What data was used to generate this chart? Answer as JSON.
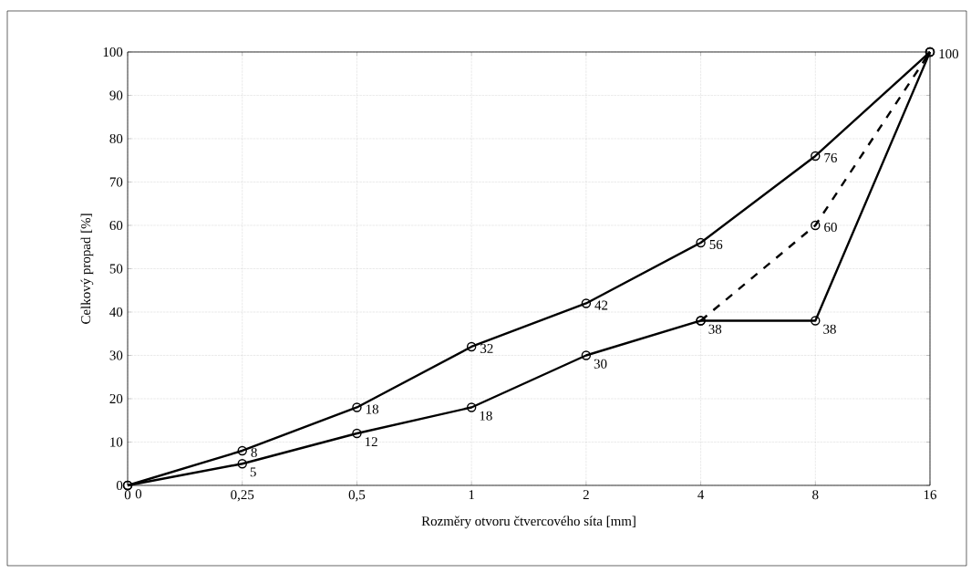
{
  "chart_data": {
    "type": "line",
    "xlabel": "Rozměry otvoru čtvercového síta [mm]",
    "ylabel": "Celkový propad [%]",
    "categories": [
      "0",
      "0,25",
      "0,5",
      "1",
      "2",
      "4",
      "8",
      "16"
    ],
    "series": [
      {
        "color": "#000000",
        "values": [
          0,
          8,
          18,
          32,
          42,
          56,
          76,
          100
        ],
        "value_labels": [
          "0",
          "8",
          "18",
          "32",
          "42",
          "56",
          "76",
          "100"
        ]
      },
      {
        "color": "#000000",
        "values": [
          0,
          5,
          12,
          18,
          30,
          38,
          38,
          100
        ],
        "value_labels": [
          null,
          "5",
          "12",
          "18",
          "30",
          "38",
          "38",
          null
        ]
      },
      {
        "color": "#000000",
        "values": [
          null,
          null,
          null,
          null,
          null,
          38,
          60,
          100
        ],
        "line_style": "dashed",
        "value_labels": [
          null,
          null,
          null,
          null,
          null,
          null,
          "60",
          null
        ]
      }
    ],
    "ylim": [
      0,
      100
    ],
    "yticks": [
      0,
      10,
      20,
      30,
      40,
      50,
      60,
      70,
      80,
      90,
      100
    ],
    "grid": true,
    "marker": "circle",
    "line_style": "solid"
  }
}
